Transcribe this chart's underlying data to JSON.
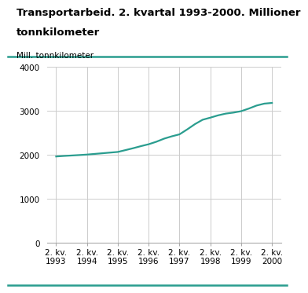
{
  "title_line1": "Transportarbeid. 2. kvartal 1993-2000. Millioner",
  "title_line2": "tonnkilometer",
  "ylabel": "Mill. tonnkilometer",
  "x_labels": [
    "2. kv.\n1993",
    "2. kv.\n1994",
    "2. kv.\n1995",
    "2. kv.\n1996",
    "2. kv.\n1997",
    "2. kv.\n1998",
    "2. kv.\n1999",
    "2. kv.\n2000"
  ],
  "x_values": [
    0,
    1,
    2,
    3,
    4,
    5,
    6,
    7
  ],
  "ylim": [
    0,
    4000
  ],
  "yticks": [
    0,
    1000,
    2000,
    3000,
    4000
  ],
  "line_color": "#2A9D8F",
  "line_width": 1.6,
  "grid_color": "#cccccc",
  "background_color": "#ffffff",
  "title_color": "#000000",
  "title_fontsize": 9.5,
  "ylabel_fontsize": 7.5,
  "tick_fontsize": 7.5,
  "title_bar_color": "#2A9D8F",
  "x_fine": [
    0,
    0.25,
    0.5,
    0.75,
    1.0,
    1.25,
    1.5,
    1.75,
    2.0,
    2.25,
    2.5,
    2.75,
    3.0,
    3.25,
    3.5,
    3.75,
    4.0,
    4.25,
    4.5,
    4.75,
    5.0,
    5.25,
    5.5,
    5.75,
    6.0,
    6.25,
    6.5,
    6.75,
    7.0
  ],
  "y_fine": [
    1960,
    1972,
    1982,
    1992,
    2003,
    2018,
    2033,
    2048,
    2063,
    2105,
    2148,
    2195,
    2238,
    2295,
    2365,
    2418,
    2463,
    2575,
    2695,
    2795,
    2843,
    2895,
    2935,
    2958,
    2990,
    3050,
    3118,
    3162,
    3178
  ]
}
